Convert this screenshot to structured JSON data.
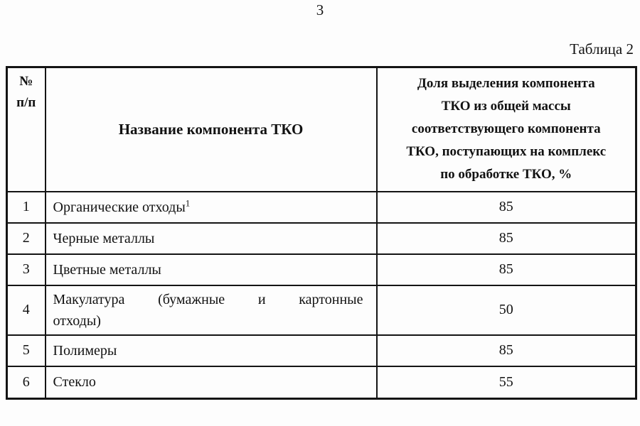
{
  "page": {
    "number": "3"
  },
  "table": {
    "caption": "Таблица 2",
    "headers": {
      "num": "№\nп/п",
      "name": "Название компонента ТКО",
      "share": "Доля выделения компонента\nТКО из общей массы\nсоответствующего компонента\nТКО, поступающих на комплекс\nпо обработке ТКО, %"
    },
    "rows": [
      {
        "num": "1",
        "name": "Органические отходы",
        "sup": "1",
        "value": "85"
      },
      {
        "num": "2",
        "name": "Черные металлы",
        "value": "85"
      },
      {
        "num": "3",
        "name": "Цветные металлы",
        "value": "85"
      },
      {
        "num": "4",
        "name_line1": "Макулатура (бумажные и картонные",
        "name_line2": "отходы)",
        "value": "50"
      },
      {
        "num": "5",
        "name": "Полимеры",
        "value": "85"
      },
      {
        "num": "6",
        "name": "Стекло",
        "value": "55"
      }
    ]
  }
}
